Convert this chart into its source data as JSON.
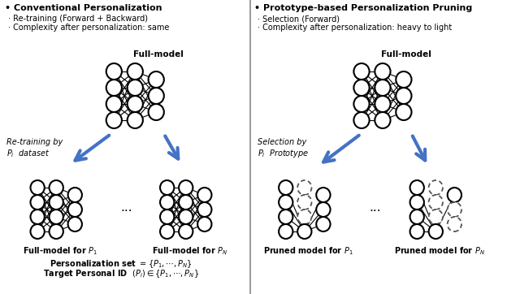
{
  "title_left": "Conventional Personalization",
  "title_right": "Prototype-based Personalization Pruning",
  "bullets_left": [
    "Re-training (Forward + Backward)",
    "Complexity after personalization: same"
  ],
  "bullets_right": [
    "Selection (Forward)",
    "Complexity after personalization: heavy to light"
  ],
  "label_fullmodel_left": "Full-model",
  "label_fullmodel_right": "Full-model",
  "label_retraining": "Re-training by\n$P_i$  dataset",
  "label_selection": "Selection by\n$P_i$  Prototype",
  "label_bottom_left1": "Full-model for $P_1$",
  "label_bottom_left2": "Full-model for $P_N$",
  "label_bottom_right1": "Pruned model for $P_1$",
  "label_bottom_right2": "Pruned model for $P_N$",
  "label_dots": "...",
  "label_personalization_set": "Personalization set $= \\{P_1, \\cdots, P_N\\}$",
  "label_target_id": "Target Personal ID  $(P_i) \\in \\{P_1, \\cdots, P_N\\}$",
  "bg_color": "#ffffff",
  "node_color": "#ffffff",
  "node_edge_color": "#000000",
  "arrow_color": "#4472C4",
  "line_color": "#000000",
  "dashed_color": "#555555"
}
